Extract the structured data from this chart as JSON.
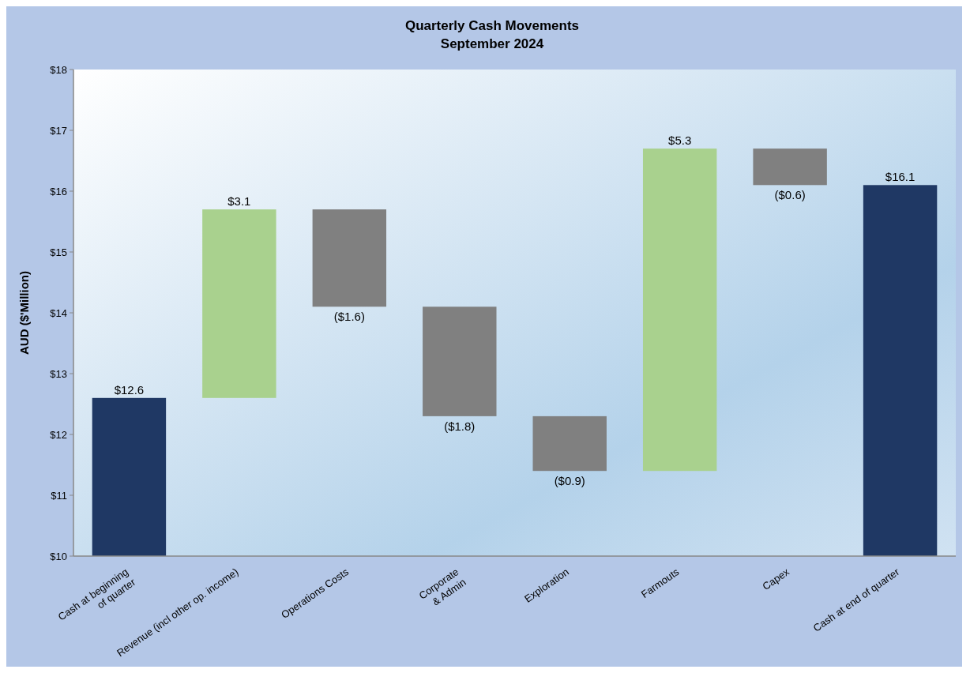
{
  "chart_data": {
    "type": "bar",
    "title": "Quarterly Cash Movements",
    "subtitle": "September 2024",
    "ylabel": "AUD ($'Million)",
    "categories": [
      "Cash at beginning\nof quarter",
      "Revenue (incl other op. income)",
      "Operations Costs",
      "Corporate\n& Admin",
      "Exploration",
      "Farmouts",
      "Capex",
      "Cash at end of quarter"
    ],
    "values": [
      12.6,
      3.1,
      -1.6,
      -1.8,
      -0.9,
      5.3,
      -0.6,
      16.1
    ],
    "base": [
      null,
      12.6,
      15.7,
      14.1,
      12.3,
      11.4,
      16.7,
      null
    ],
    "colors": [
      "#1f3864",
      "#a9d18e",
      "#808080",
      "#808080",
      "#808080",
      "#a9d18e",
      "#808080",
      "#1f3864"
    ],
    "value_labels": [
      "$12.6",
      "$3.1",
      "($1.6)",
      "($1.8)",
      "($0.9)",
      "$5.3",
      "($0.6)",
      "$16.1"
    ],
    "ylim": [
      10,
      18
    ],
    "yticks": [
      {
        "value": 10,
        "label": "$10"
      },
      {
        "value": 11,
        "label": "$11"
      },
      {
        "value": 12,
        "label": "$12"
      },
      {
        "value": 13,
        "label": "$13"
      },
      {
        "value": 14,
        "label": "$14"
      },
      {
        "value": 15,
        "label": "$15"
      },
      {
        "value": 16,
        "label": "$16"
      },
      {
        "value": 17,
        "label": "$17"
      },
      {
        "value": 18,
        "label": "$18"
      }
    ],
    "grid": false
  }
}
